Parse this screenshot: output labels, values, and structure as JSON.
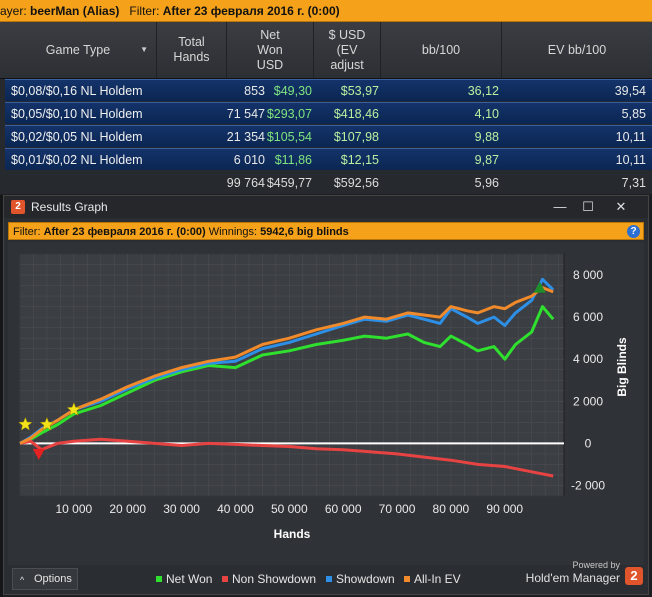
{
  "filter_bar": {
    "prefix": "ayer:",
    "player": "beerMan (Alias)",
    "filter_label": "Filter:",
    "filter_value": "After 23 февраля 2016 г. (0:00)"
  },
  "table": {
    "columns": [
      "Game Type",
      "Total Hands",
      "Net Won USD",
      "$ USD (EV adjust",
      "bb/100",
      "EV bb/100"
    ],
    "rows": [
      {
        "game": "$0,08/$0,16 NL Holdem",
        "hands": "853",
        "net": "$49,30",
        "ev": "$53,97",
        "bb": "36,12",
        "evbb": "39,54"
      },
      {
        "game": "$0,05/$0,10 NL Holdem",
        "hands": "71 547",
        "net": "$293,07",
        "ev": "$418,46",
        "bb": "4,10",
        "evbb": "5,85"
      },
      {
        "game": "$0,02/$0,05 NL Holdem",
        "hands": "21 354",
        "net": "$105,54",
        "ev": "$107,98",
        "bb": "9,88",
        "evbb": "10,11"
      },
      {
        "game": "$0,01/$0,02 NL Holdem",
        "hands": "6 010",
        "net": "$11,86",
        "ev": "$12,15",
        "bb": "9,87",
        "evbb": "10,11"
      }
    ],
    "totals": {
      "hands": "99 764",
      "net": "$459,77",
      "ev": "$592,56",
      "bb": "5,96",
      "evbb": "7,31"
    }
  },
  "graph_window": {
    "title": "Results Graph",
    "logo_text": "2",
    "filter_label": "Filter:",
    "filter_value": "After 23 февраля 2016 г. (0:00)",
    "winnings_label": "Winnings:",
    "winnings_value": "5942,6 big blinds",
    "help_glyph": "?",
    "minimize_glyph": "—",
    "maximize_glyph": "☐",
    "close_glyph": "✕"
  },
  "chart_data": {
    "type": "line",
    "xlabel": "Hands",
    "ylabel": "Big Blinds",
    "xlim": [
      0,
      101000
    ],
    "ylim": [
      -2500,
      9000
    ],
    "x_ticks": [
      10000,
      20000,
      30000,
      40000,
      50000,
      60000,
      70000,
      80000,
      90000
    ],
    "x_tick_labels": [
      "10 000",
      "20 000",
      "30 000",
      "40 000",
      "50 000",
      "60 000",
      "70 000",
      "80 000",
      "90 000"
    ],
    "y_ticks": [
      -2000,
      0,
      2000,
      4000,
      6000,
      8000
    ],
    "y_tick_labels": [
      "-2 000",
      "0",
      "2 000",
      "4 000",
      "6 000",
      "8 000"
    ],
    "grid": true,
    "series": [
      {
        "name": "Net Won",
        "color": "#2fe02f",
        "x": [
          0,
          2000,
          4000,
          7000,
          10000,
          15000,
          20000,
          25000,
          30000,
          35000,
          40000,
          45000,
          50000,
          55000,
          60000,
          64000,
          68000,
          72000,
          75000,
          78000,
          80000,
          83000,
          85000,
          88000,
          90000,
          92000,
          95000,
          97000,
          99000
        ],
        "y": [
          0,
          200,
          500,
          900,
          1400,
          1800,
          2400,
          3000,
          3400,
          3700,
          3600,
          4200,
          4400,
          4700,
          4900,
          5100,
          5000,
          5200,
          4800,
          4600,
          5100,
          4700,
          4400,
          4600,
          4000,
          4700,
          5300,
          6500,
          5900
        ]
      },
      {
        "name": "Non Showdown",
        "color": "#e84343",
        "x": [
          0,
          2000,
          4000,
          7000,
          10000,
          15000,
          20000,
          25000,
          30000,
          35000,
          40000,
          45000,
          50000,
          55000,
          60000,
          65000,
          70000,
          75000,
          80000,
          85000,
          90000,
          95000,
          99000
        ],
        "y": [
          0,
          100,
          -300,
          0,
          100,
          200,
          100,
          0,
          -100,
          0,
          -50,
          -100,
          -150,
          -250,
          -300,
          -400,
          -500,
          -650,
          -800,
          -1000,
          -1100,
          -1350,
          -1550
        ]
      },
      {
        "name": "Showdown",
        "color": "#2d8fe6",
        "x": [
          0,
          2000,
          4000,
          7000,
          10000,
          15000,
          20000,
          25000,
          30000,
          35000,
          40000,
          45000,
          50000,
          55000,
          60000,
          64000,
          68000,
          72000,
          75000,
          78000,
          80000,
          83000,
          85000,
          88000,
          90000,
          92000,
          95000,
          97000,
          99000
        ],
        "y": [
          0,
          300,
          700,
          1100,
          1600,
          2000,
          2600,
          3100,
          3500,
          3800,
          3900,
          4500,
          4800,
          5200,
          5600,
          5900,
          5800,
          6100,
          5900,
          5700,
          6400,
          6000,
          5700,
          6000,
          5600,
          6200,
          6800,
          7800,
          7300
        ]
      },
      {
        "name": "All-In EV",
        "color": "#f08a2a",
        "x": [
          0,
          2000,
          4000,
          7000,
          10000,
          15000,
          20000,
          25000,
          30000,
          35000,
          40000,
          45000,
          50000,
          55000,
          60000,
          64000,
          68000,
          72000,
          75000,
          78000,
          80000,
          83000,
          85000,
          88000,
          90000,
          92000,
          95000,
          97000,
          99000
        ],
        "y": [
          0,
          250,
          650,
          1100,
          1600,
          2100,
          2700,
          3200,
          3600,
          3900,
          4100,
          4700,
          5000,
          5400,
          5700,
          6000,
          5900,
          6200,
          6100,
          6000,
          6500,
          6300,
          6200,
          6500,
          6400,
          6700,
          7000,
          7400,
          7200
        ]
      }
    ],
    "markers": [
      {
        "kind": "star",
        "x": 1000,
        "y": 900,
        "color": "#f3e21a"
      },
      {
        "kind": "star",
        "x": 5000,
        "y": 900,
        "color": "#f3e21a"
      },
      {
        "kind": "star",
        "x": 10000,
        "y": 1600,
        "color": "#f3e21a"
      },
      {
        "kind": "down-triangle",
        "x": 3500,
        "y": -500,
        "color": "#e52121"
      },
      {
        "kind": "up-triangle",
        "x": 96500,
        "y": 7400,
        "color": "#1f8f2a"
      }
    ],
    "legend": [
      {
        "name": "Net Won",
        "color": "#2fe02f"
      },
      {
        "name": "Non Showdown",
        "color": "#e84343"
      },
      {
        "name": "Showdown",
        "color": "#2d8fe6"
      },
      {
        "name": "All-In EV",
        "color": "#f08a2a"
      }
    ]
  },
  "footer": {
    "options_label": "Options",
    "options_arrow": "^",
    "powered_by": "Powered by",
    "brand": "Hold'em Manager",
    "brand_logo": "2"
  }
}
